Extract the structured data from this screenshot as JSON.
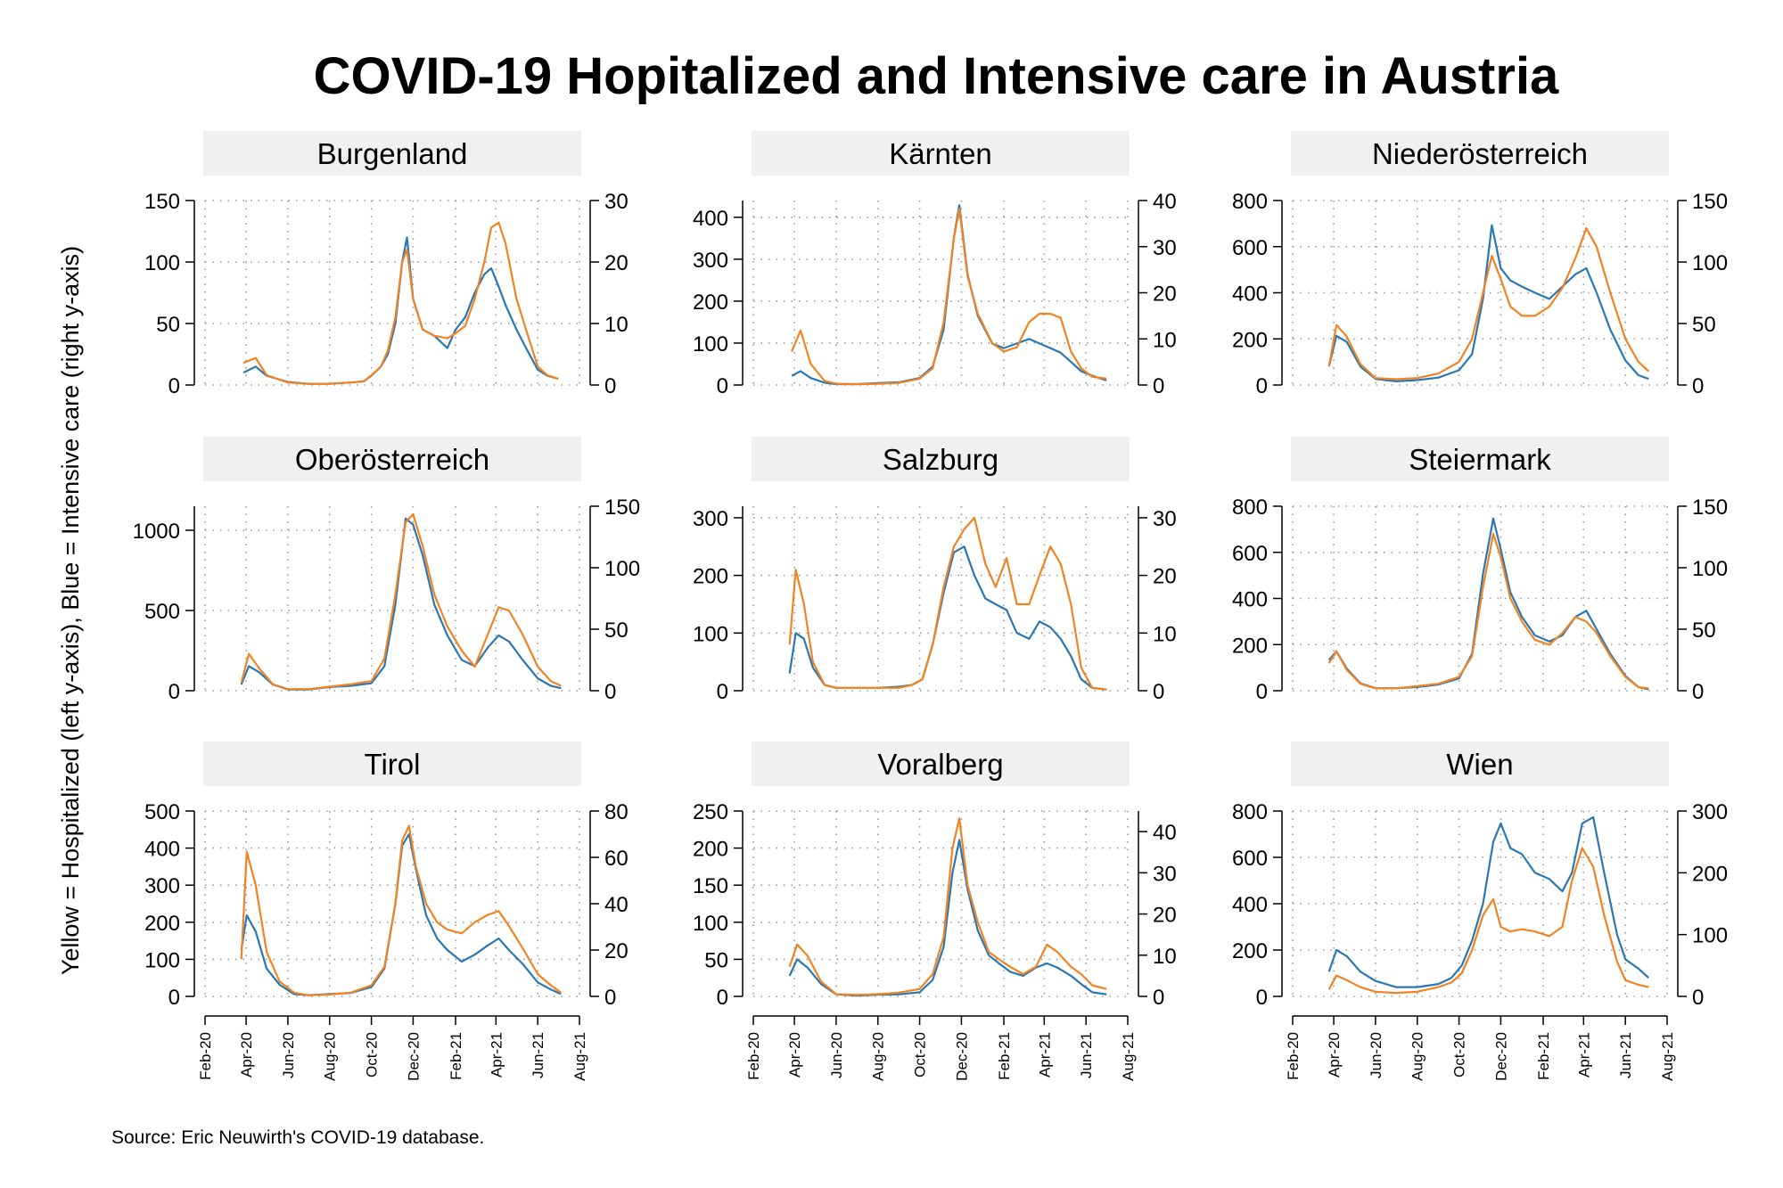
{
  "title": "COVID-19 Hopitalized and Intensive care in Austria",
  "y_axis_label": "Yellow = Hospitalized (left y-axis), Blue = Intensive care (right y-axis)",
  "source": "Source: Eric Neuwirth's COVID-19 database.",
  "colors": {
    "hospitalized": "#f28322",
    "intensive": "#2b77b4",
    "strip": "#f0f0f0",
    "grid": "#999999"
  },
  "x_ticks": [
    "Feb-20",
    "Apr-20",
    "Jun-20",
    "Aug-20",
    "Oct-20",
    "Dec-20",
    "Feb-21",
    "Apr-21",
    "Jun-21",
    "Aug-21"
  ],
  "chart_data": [
    {
      "type": "line",
      "title": "Burgenland",
      "left_ylim": [
        0,
        150
      ],
      "left_ticks": [
        0,
        50,
        100,
        150
      ],
      "right_ylim": [
        0,
        30
      ],
      "right_ticks": [
        0,
        10,
        20,
        30
      ],
      "x": [
        "2020-03-28",
        "2020-04-15",
        "2020-05-01",
        "2020-06-01",
        "2020-07-01",
        "2020-08-01",
        "2020-09-01",
        "2020-09-20",
        "2020-10-01",
        "2020-10-15",
        "2020-10-25",
        "2020-11-05",
        "2020-11-15",
        "2020-11-22",
        "2020-12-01",
        "2020-12-15",
        "2021-01-01",
        "2021-01-20",
        "2021-02-01",
        "2021-02-15",
        "2021-03-01",
        "2021-03-15",
        "2021-03-25",
        "2021-04-05",
        "2021-04-15",
        "2021-05-01",
        "2021-05-15",
        "2021-06-01",
        "2021-06-15",
        "2021-07-01"
      ],
      "series": [
        {
          "role": "hospitalized",
          "axis": "left",
          "values": [
            18,
            22,
            8,
            2,
            1,
            1,
            2,
            3,
            8,
            15,
            28,
            55,
            100,
            110,
            70,
            45,
            40,
            38,
            42,
            48,
            70,
            100,
            128,
            132,
            115,
            70,
            45,
            15,
            8,
            5
          ]
        },
        {
          "role": "intensive",
          "axis": "right",
          "values": [
            2,
            3,
            1.5,
            0.5,
            0.2,
            0.2,
            0.4,
            0.6,
            1.5,
            3,
            5,
            10,
            20,
            24,
            14,
            9,
            8,
            6,
            9,
            11,
            15,
            18,
            19,
            16,
            13,
            9,
            6,
            2.5,
            1.5,
            1
          ]
        }
      ]
    },
    {
      "type": "line",
      "title": "Kärnten",
      "left_ylim": [
        0,
        440
      ],
      "left_ticks": [
        0,
        100,
        200,
        300,
        400
      ],
      "right_ylim": [
        0,
        40
      ],
      "right_ticks": [
        0,
        10,
        20,
        30,
        40
      ],
      "x": [
        "2020-03-28",
        "2020-04-10",
        "2020-04-25",
        "2020-05-15",
        "2020-06-01",
        "2020-07-01",
        "2020-08-01",
        "2020-09-01",
        "2020-10-01",
        "2020-10-20",
        "2020-11-05",
        "2020-11-20",
        "2020-11-28",
        "2020-12-10",
        "2020-12-25",
        "2021-01-15",
        "2021-02-01",
        "2021-02-20",
        "2021-03-10",
        "2021-03-25",
        "2021-04-10",
        "2021-04-25",
        "2021-05-10",
        "2021-05-25",
        "2021-06-10",
        "2021-07-01"
      ],
      "series": [
        {
          "role": "hospitalized",
          "axis": "left",
          "values": [
            80,
            130,
            50,
            10,
            3,
            2,
            3,
            5,
            15,
            40,
            150,
            350,
            420,
            260,
            170,
            100,
            80,
            90,
            150,
            170,
            170,
            160,
            80,
            40,
            20,
            15
          ]
        },
        {
          "role": "intensive",
          "axis": "right",
          "values": [
            2,
            3,
            1.5,
            0.5,
            0.2,
            0.2,
            0.4,
            0.6,
            1.5,
            4,
            12,
            32,
            39,
            24,
            15,
            9,
            8,
            9,
            10,
            9,
            8,
            7,
            5,
            3,
            2,
            1
          ]
        }
      ]
    },
    {
      "type": "line",
      "title": "Niederösterreich",
      "left_ylim": [
        0,
        800
      ],
      "left_ticks": [
        0,
        200,
        400,
        600,
        800
      ],
      "right_ylim": [
        0,
        150
      ],
      "right_ticks": [
        0,
        50,
        100,
        150
      ],
      "x": [
        "2020-03-25",
        "2020-04-05",
        "2020-04-20",
        "2020-05-10",
        "2020-06-01",
        "2020-07-01",
        "2020-08-01",
        "2020-09-01",
        "2020-10-01",
        "2020-10-20",
        "2020-11-05",
        "2020-11-18",
        "2020-12-01",
        "2020-12-15",
        "2021-01-01",
        "2021-01-20",
        "2021-02-10",
        "2021-03-01",
        "2021-03-20",
        "2021-04-05",
        "2021-04-20",
        "2021-05-10",
        "2021-06-01",
        "2021-06-20",
        "2021-07-05"
      ],
      "series": [
        {
          "role": "hospitalized",
          "axis": "left",
          "values": [
            80,
            260,
            210,
            90,
            30,
            25,
            30,
            50,
            100,
            200,
            400,
            560,
            460,
            340,
            300,
            300,
            340,
            420,
            550,
            680,
            600,
            400,
            200,
            100,
            60
          ]
        },
        {
          "role": "intensive",
          "axis": "right",
          "values": [
            15,
            40,
            35,
            15,
            5,
            3,
            4,
            6,
            12,
            25,
            70,
            130,
            95,
            85,
            80,
            75,
            70,
            80,
            90,
            95,
            75,
            45,
            20,
            8,
            5
          ]
        }
      ]
    },
    {
      "type": "line",
      "title": "Oberösterreich",
      "left_ylim": [
        0,
        1150
      ],
      "left_ticks": [
        0,
        500,
        1000
      ],
      "right_ylim": [
        0,
        150
      ],
      "right_ticks": [
        0,
        50,
        100,
        150
      ],
      "x": [
        "2020-03-25",
        "2020-04-05",
        "2020-04-20",
        "2020-05-10",
        "2020-06-01",
        "2020-07-01",
        "2020-08-01",
        "2020-09-01",
        "2020-10-01",
        "2020-10-20",
        "2020-11-05",
        "2020-11-20",
        "2020-12-01",
        "2020-12-15",
        "2021-01-01",
        "2021-01-20",
        "2021-02-10",
        "2021-03-01",
        "2021-03-20",
        "2021-04-05",
        "2021-04-20",
        "2021-05-10",
        "2021-06-01",
        "2021-06-20",
        "2021-07-05"
      ],
      "series": [
        {
          "role": "hospitalized",
          "axis": "left",
          "values": [
            50,
            230,
            140,
            40,
            10,
            10,
            25,
            40,
            60,
            200,
            600,
            1050,
            1100,
            900,
            600,
            400,
            250,
            150,
            350,
            520,
            500,
            350,
            150,
            60,
            30
          ]
        },
        {
          "role": "intensive",
          "axis": "right",
          "values": [
            5,
            20,
            15,
            5,
            1,
            1,
            3,
            4,
            6,
            20,
            70,
            140,
            135,
            110,
            70,
            45,
            25,
            20,
            35,
            45,
            40,
            25,
            10,
            4,
            2
          ]
        }
      ]
    },
    {
      "type": "line",
      "title": "Salzburg",
      "left_ylim": [
        0,
        320
      ],
      "left_ticks": [
        0,
        100,
        200,
        300
      ],
      "right_ylim": [
        0,
        32
      ],
      "right_ticks": [
        0,
        10,
        20,
        30
      ],
      "x": [
        "2020-03-25",
        "2020-04-03",
        "2020-04-15",
        "2020-04-28",
        "2020-05-15",
        "2020-06-01",
        "2020-07-01",
        "2020-08-01",
        "2020-09-01",
        "2020-09-20",
        "2020-10-05",
        "2020-10-20",
        "2020-11-05",
        "2020-11-20",
        "2020-12-05",
        "2020-12-20",
        "2021-01-05",
        "2021-01-20",
        "2021-02-05",
        "2021-02-20",
        "2021-03-10",
        "2021-03-25",
        "2021-04-10",
        "2021-04-25",
        "2021-05-10",
        "2021-05-25",
        "2021-06-10",
        "2021-07-01"
      ],
      "series": [
        {
          "role": "hospitalized",
          "axis": "left",
          "values": [
            80,
            210,
            150,
            50,
            10,
            5,
            5,
            5,
            5,
            10,
            20,
            80,
            180,
            250,
            280,
            300,
            220,
            180,
            230,
            150,
            150,
            200,
            250,
            220,
            150,
            40,
            5,
            2
          ]
        },
        {
          "role": "intensive",
          "axis": "right",
          "values": [
            3,
            10,
            9,
            4,
            1,
            0.5,
            0.5,
            0.5,
            0.7,
            1,
            2,
            8,
            17,
            24,
            25,
            20,
            16,
            15,
            14,
            10,
            9,
            12,
            11,
            9,
            6,
            2,
            0.5,
            0.2
          ]
        }
      ]
    },
    {
      "type": "line",
      "title": "Steiermark",
      "left_ylim": [
        0,
        800
      ],
      "left_ticks": [
        0,
        200,
        400,
        600,
        800
      ],
      "right_ylim": [
        0,
        150
      ],
      "right_ticks": [
        0,
        50,
        100,
        150
      ],
      "x": [
        "2020-03-25",
        "2020-04-05",
        "2020-04-20",
        "2020-05-10",
        "2020-06-01",
        "2020-07-01",
        "2020-08-01",
        "2020-09-01",
        "2020-10-01",
        "2020-10-20",
        "2020-11-05",
        "2020-11-20",
        "2020-12-01",
        "2020-12-15",
        "2021-01-01",
        "2021-01-20",
        "2021-02-10",
        "2021-03-01",
        "2021-03-20",
        "2021-04-05",
        "2021-04-20",
        "2021-05-10",
        "2021-06-01",
        "2021-06-20",
        "2021-07-05"
      ],
      "series": [
        {
          "role": "hospitalized",
          "axis": "left",
          "values": [
            120,
            170,
            90,
            30,
            10,
            10,
            20,
            30,
            60,
            150,
            450,
            680,
            580,
            400,
            300,
            220,
            200,
            250,
            320,
            300,
            250,
            150,
            60,
            15,
            10
          ]
        },
        {
          "role": "intensive",
          "axis": "right",
          "values": [
            25,
            32,
            18,
            6,
            2,
            2,
            3,
            5,
            10,
            30,
            95,
            140,
            115,
            80,
            60,
            45,
            40,
            45,
            60,
            65,
            50,
            30,
            12,
            3,
            1
          ]
        }
      ]
    },
    {
      "type": "line",
      "title": "Tirol",
      "left_ylim": [
        0,
        500
      ],
      "left_ticks": [
        0,
        100,
        200,
        300,
        400,
        500
      ],
      "right_ylim": [
        0,
        80
      ],
      "right_ticks": [
        0,
        20,
        40,
        60,
        80
      ],
      "x": [
        "2020-03-25",
        "2020-04-02",
        "2020-04-15",
        "2020-05-01",
        "2020-05-20",
        "2020-06-10",
        "2020-07-01",
        "2020-08-01",
        "2020-09-01",
        "2020-10-01",
        "2020-10-20",
        "2020-11-05",
        "2020-11-15",
        "2020-11-25",
        "2020-12-05",
        "2020-12-20",
        "2021-01-05",
        "2021-01-20",
        "2021-02-10",
        "2021-03-01",
        "2021-03-20",
        "2021-04-05",
        "2021-04-20",
        "2021-05-10",
        "2021-06-01",
        "2021-06-20",
        "2021-07-05"
      ],
      "series": [
        {
          "role": "hospitalized",
          "axis": "left",
          "values": [
            100,
            390,
            300,
            120,
            40,
            10,
            3,
            5,
            10,
            30,
            80,
            250,
            420,
            460,
            350,
            250,
            200,
            180,
            170,
            200,
            220,
            230,
            190,
            130,
            60,
            30,
            10
          ]
        },
        {
          "role": "intensive",
          "axis": "right",
          "values": [
            20,
            35,
            28,
            12,
            5,
            1,
            0.5,
            1,
            1.5,
            4,
            12,
            40,
            65,
            70,
            55,
            35,
            25,
            20,
            15,
            18,
            22,
            25,
            20,
            14,
            6,
            3,
            1
          ]
        }
      ]
    },
    {
      "type": "line",
      "title": "Voralberg",
      "left_ylim": [
        0,
        250
      ],
      "left_ticks": [
        0,
        50,
        100,
        150,
        200,
        250
      ],
      "right_ylim": [
        0,
        45
      ],
      "right_ticks": [
        0,
        10,
        20,
        30,
        40
      ],
      "x": [
        "2020-03-25",
        "2020-04-05",
        "2020-04-20",
        "2020-05-10",
        "2020-06-01",
        "2020-07-01",
        "2020-08-01",
        "2020-09-01",
        "2020-10-01",
        "2020-10-20",
        "2020-11-05",
        "2020-11-18",
        "2020-11-28",
        "2020-12-10",
        "2020-12-25",
        "2021-01-10",
        "2021-01-25",
        "2021-02-10",
        "2021-03-01",
        "2021-03-20",
        "2021-04-05",
        "2021-04-20",
        "2021-05-10",
        "2021-05-25",
        "2021-06-10",
        "2021-07-01"
      ],
      "series": [
        {
          "role": "hospitalized",
          "axis": "left",
          "values": [
            40,
            70,
            55,
            20,
            3,
            2,
            3,
            5,
            10,
            30,
            80,
            200,
            240,
            150,
            100,
            60,
            50,
            40,
            30,
            40,
            70,
            60,
            40,
            30,
            15,
            10
          ]
        },
        {
          "role": "intensive",
          "axis": "right",
          "values": [
            5,
            9,
            7,
            3,
            0.5,
            0.2,
            0.4,
            0.5,
            1,
            4,
            12,
            30,
            38,
            26,
            16,
            10,
            8,
            6,
            5,
            7,
            8,
            7,
            5,
            3,
            1,
            0.5
          ]
        }
      ]
    },
    {
      "type": "line",
      "title": "Wien",
      "left_ylim": [
        0,
        800
      ],
      "left_ticks": [
        0,
        200,
        400,
        600,
        800
      ],
      "right_ylim": [
        0,
        300
      ],
      "right_ticks": [
        0,
        100,
        200,
        300
      ],
      "x": [
        "2020-03-25",
        "2020-04-05",
        "2020-04-20",
        "2020-05-10",
        "2020-06-01",
        "2020-07-01",
        "2020-08-01",
        "2020-09-01",
        "2020-09-20",
        "2020-10-05",
        "2020-10-20",
        "2020-11-05",
        "2020-11-20",
        "2020-12-01",
        "2020-12-15",
        "2021-01-01",
        "2021-01-20",
        "2021-02-10",
        "2021-03-01",
        "2021-03-15",
        "2021-03-30",
        "2021-04-15",
        "2021-05-01",
        "2021-05-20",
        "2021-06-01",
        "2021-06-20",
        "2021-07-05"
      ],
      "series": [
        {
          "role": "hospitalized",
          "axis": "left",
          "values": [
            30,
            90,
            70,
            40,
            20,
            15,
            20,
            40,
            60,
            100,
            200,
            350,
            420,
            300,
            280,
            290,
            280,
            260,
            300,
            500,
            640,
            560,
            350,
            150,
            70,
            50,
            40
          ]
        },
        {
          "role": "intensive",
          "axis": "right",
          "values": [
            40,
            75,
            65,
            40,
            25,
            15,
            15,
            20,
            30,
            50,
            90,
            150,
            250,
            280,
            240,
            230,
            200,
            190,
            170,
            200,
            280,
            290,
            200,
            100,
            60,
            45,
            30
          ]
        }
      ]
    }
  ]
}
